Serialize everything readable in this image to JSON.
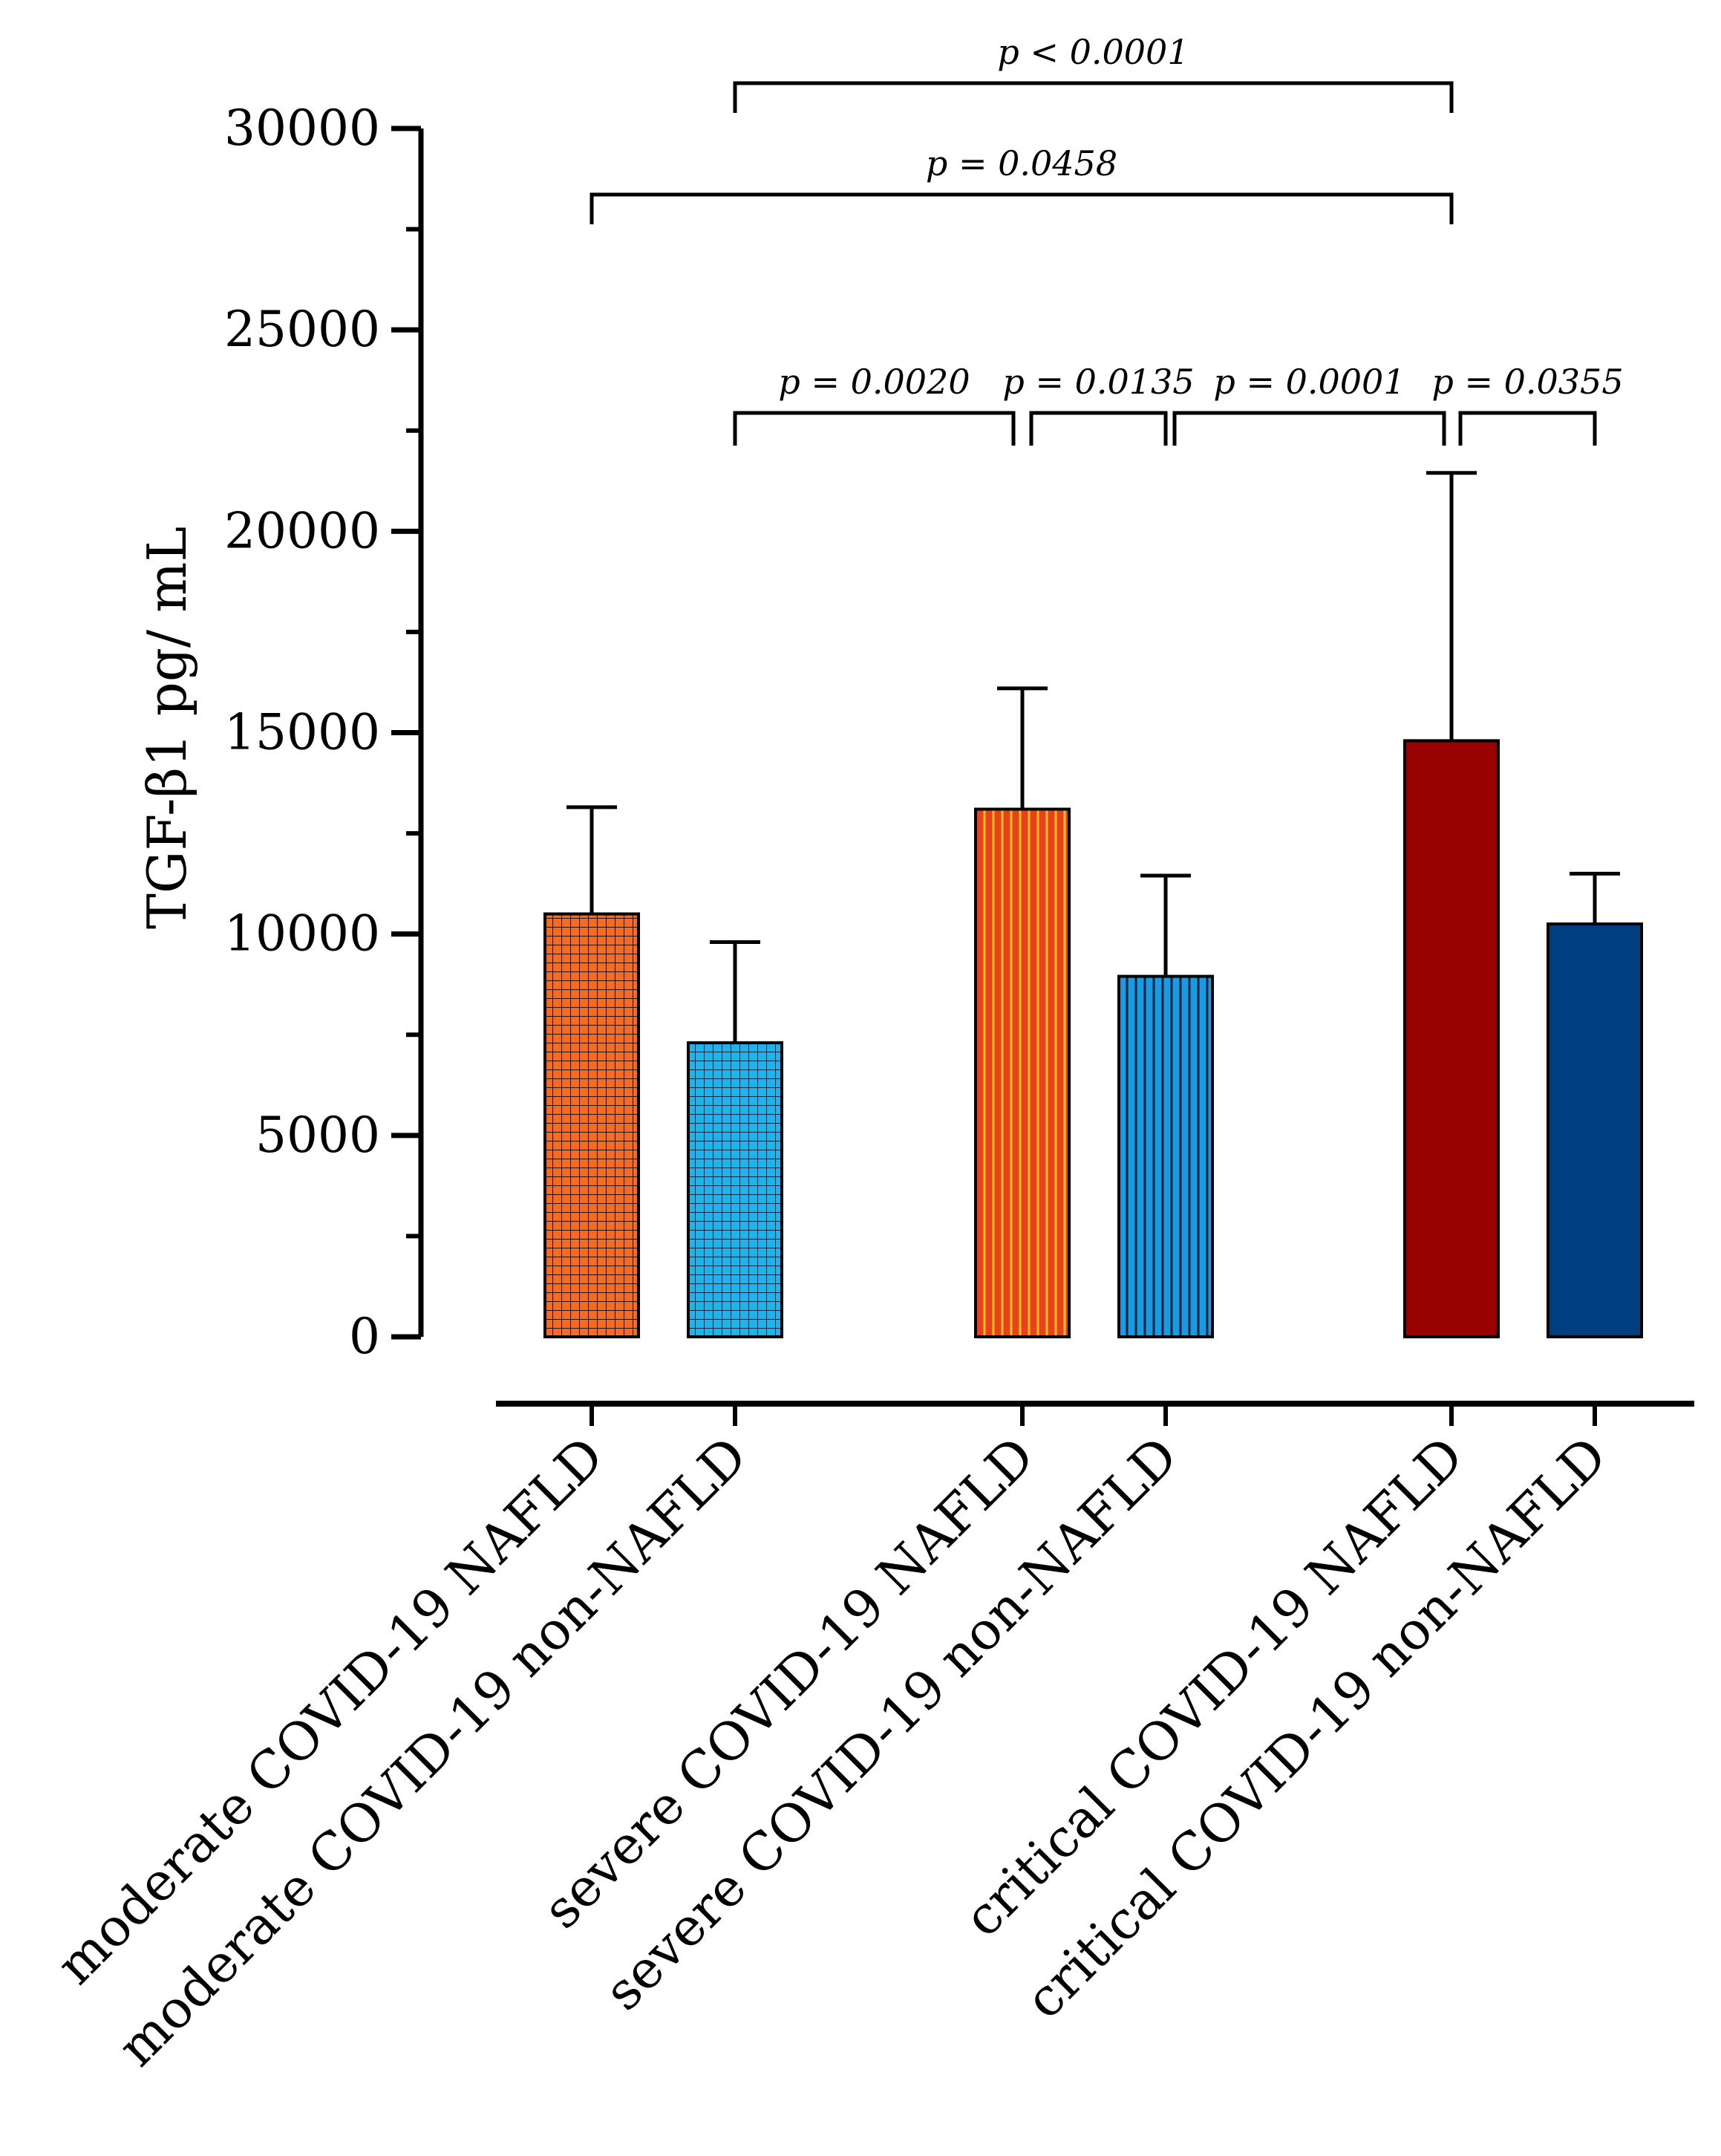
{
  "chart_data": {
    "type": "bar",
    "title": "",
    "xlabel": "",
    "ylabel": "TGF-β1 pg/ mL",
    "ylim": [
      0,
      30000
    ],
    "yticks": [
      0,
      5000,
      10000,
      15000,
      20000,
      25000,
      30000
    ],
    "ytick_labels": [
      "0",
      "5000",
      "10000",
      "15000",
      "20000",
      "25000",
      "30000"
    ],
    "grid": false,
    "legend": "none",
    "categories": [
      "moderate COVID-19 NAFLD",
      "moderate COVID-19 non-NAFLD",
      "severe COVID-19 NAFLD",
      "severe COVID-19  non-NAFLD",
      "critical COVID-19  NAFLD",
      "critical COVID-19  non-NAFLD"
    ],
    "groups": [
      0,
      0,
      1,
      1,
      2,
      2
    ],
    "values": [
      10500,
      7300,
      13100,
      8950,
      14800,
      10250
    ],
    "error_upper": [
      13150,
      9800,
      16100,
      11450,
      21450,
      11500
    ],
    "bar_colors": [
      "#f26d21",
      "#1fb3ec",
      "#e8411e",
      "#1a9ae0",
      "#990000",
      "#003f7f"
    ],
    "bar_patterns": [
      "grid",
      "grid",
      "vertical",
      "vertical",
      "solid",
      "solid"
    ],
    "comparisons": [
      {
        "from": 1,
        "to": 4,
        "label": "p < 0.0001"
      },
      {
        "from": 0,
        "to": 4,
        "label": "p = 0.0458"
      },
      {
        "from": 1,
        "to": 2,
        "label": "p = 0.0020"
      },
      {
        "from": 2,
        "to": 3,
        "label": "p = 0.0135"
      },
      {
        "from": 3,
        "to": 4,
        "label": "p = 0.0001"
      },
      {
        "from": 4,
        "to": 5,
        "label": "p = 0.0355"
      }
    ]
  }
}
